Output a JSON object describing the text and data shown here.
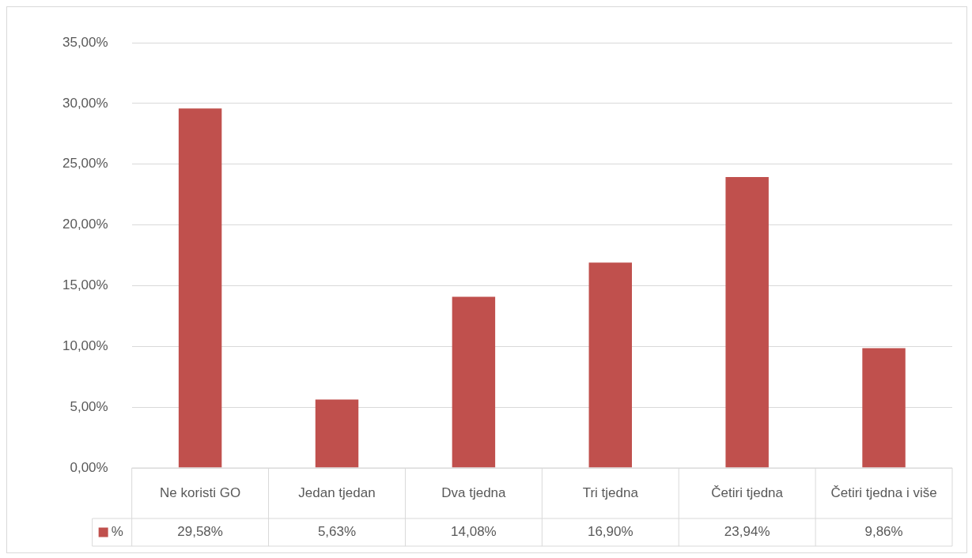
{
  "chart_data": {
    "type": "bar",
    "categories": [
      "Ne koristi GO",
      "Jedan tjedan",
      "Dva tjedna",
      "Tri tjedna",
      "Četiri tjedna",
      "Četiri tjedna i više"
    ],
    "series": [
      {
        "name": "%",
        "color": "#c0504d",
        "values": [
          29.58,
          5.63,
          14.08,
          16.9,
          23.94,
          9.86
        ],
        "value_labels": [
          "29,58%",
          "5,63%",
          "14,08%",
          "16,90%",
          "23,94%",
          "9,86%"
        ]
      }
    ],
    "ylim": [
      0,
      35
    ],
    "yticks": [
      {
        "value": 0,
        "label": "0,00%"
      },
      {
        "value": 5,
        "label": "5,00%"
      },
      {
        "value": 10,
        "label": "10,00%"
      },
      {
        "value": 15,
        "label": "15,00%"
      },
      {
        "value": 20,
        "label": "20,00%"
      },
      {
        "value": 25,
        "label": "25,00%"
      },
      {
        "value": 30,
        "label": "30,00%"
      },
      {
        "value": 35,
        "label": "35,00%"
      }
    ],
    "grid": "y",
    "legend": "bottom"
  }
}
